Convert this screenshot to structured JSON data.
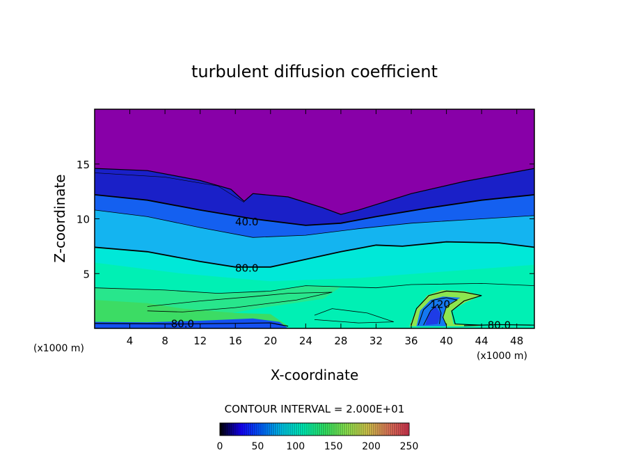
{
  "chart_data": {
    "type": "heatmap",
    "title": "turbulent diffusion coefficient",
    "xlabel": "X-coordinate",
    "ylabel": "Z-coordinate",
    "x_unit": "(x1000 m)",
    "x_unit_right": "(x1000 m)",
    "xlim": [
      0,
      50
    ],
    "ylim": [
      0,
      20
    ],
    "x_ticks": [
      4,
      8,
      12,
      16,
      20,
      24,
      28,
      32,
      36,
      40,
      44,
      48
    ],
    "y_ticks": [
      5,
      10,
      15
    ],
    "contour_interval_text": "CONTOUR INTERVAL = 2.000E+01",
    "contour_interval": 20,
    "contour_labels": [
      {
        "text": "40.0",
        "x": 17.3,
        "y": 9.7
      },
      {
        "text": "80.0",
        "x": 17.3,
        "y": 5.5
      },
      {
        "text": "80.0",
        "x": 10,
        "y": 0.4
      },
      {
        "text": "120",
        "x": 39.3,
        "y": 2.2
      },
      {
        "text": "80.0",
        "x": 46,
        "y": 0.3
      }
    ],
    "colorbar": {
      "range": [
        0,
        250
      ],
      "ticks": [
        0,
        50,
        100,
        150,
        200,
        250
      ],
      "colors": [
        "#000000",
        "#1400ff",
        "#0064ff",
        "#00c8e6",
        "#00f0b4",
        "#32e664",
        "#8ce650",
        "#d2c84b",
        "#e1785a",
        "#d23250"
      ]
    },
    "field_colors": {
      "upper": "#8800a8",
      "c40": "#1432e6",
      "c60": "#1478f0",
      "c80": "#0ad8dc",
      "c90": "#00f0b4",
      "c100": "#28e68c",
      "c110": "#3cdc64",
      "c120": "#8ce650"
    }
  }
}
